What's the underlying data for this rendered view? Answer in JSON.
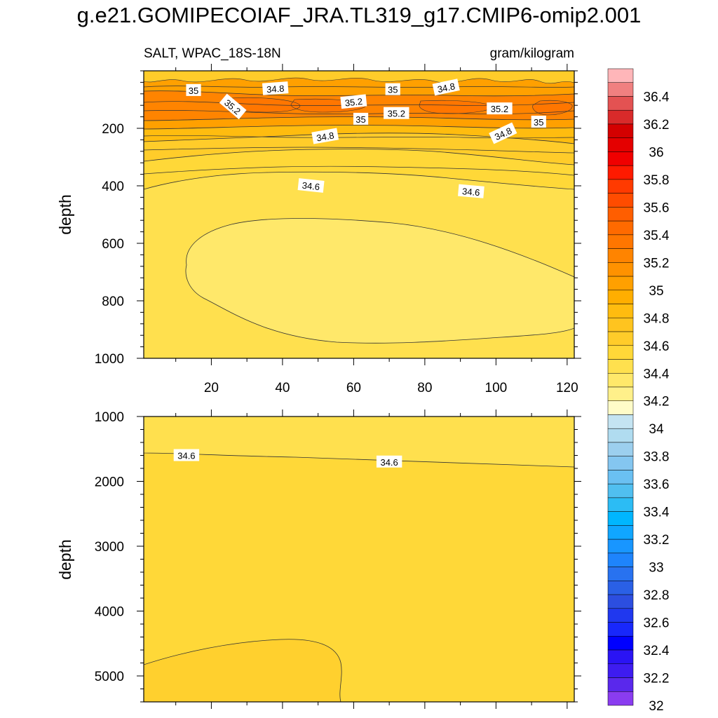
{
  "title": "g.e21.GOMIPECOIAF_JRA.TL319_g17.CMIP6-omip2.001",
  "chart_data": [
    {
      "type": "heatmap",
      "panel": "upper",
      "left_string": "SALT, WPAC_18S-18N",
      "right_string": "gram/kilogram",
      "xlabel": "",
      "ylabel": "depth",
      "xlim": [
        1,
        122
      ],
      "ylim": [
        1000,
        0
      ],
      "x_ticks": [
        20,
        40,
        60,
        80,
        100,
        120
      ],
      "y_ticks": [
        200,
        400,
        600,
        800,
        1000
      ],
      "grid": false,
      "contour_labels": [
        {
          "text": "35",
          "x": 15,
          "y": 68,
          "rotate": 0
        },
        {
          "text": "34.8",
          "x": 38,
          "y": 62,
          "rotate": -4
        },
        {
          "text": "35.2",
          "x": 26,
          "y": 125,
          "rotate": 40
        },
        {
          "text": "35.2",
          "x": 60,
          "y": 108,
          "rotate": -6
        },
        {
          "text": "35",
          "x": 71,
          "y": 65,
          "rotate": 0
        },
        {
          "text": "34.8",
          "x": 86,
          "y": 58,
          "rotate": -12
        },
        {
          "text": "35.2",
          "x": 72,
          "y": 148,
          "rotate": 0
        },
        {
          "text": "35.2",
          "x": 101,
          "y": 132,
          "rotate": 0
        },
        {
          "text": "35",
          "x": 62,
          "y": 168,
          "rotate": 0
        },
        {
          "text": "35",
          "x": 112,
          "y": 178,
          "rotate": 0
        },
        {
          "text": "34.8",
          "x": 52,
          "y": 228,
          "rotate": -10
        },
        {
          "text": "34.8",
          "x": 102,
          "y": 218,
          "rotate": -25
        },
        {
          "text": "34.6",
          "x": 48,
          "y": 400,
          "rotate": 6
        },
        {
          "text": "34.6",
          "x": 93,
          "y": 420,
          "rotate": 5
        }
      ]
    },
    {
      "type": "heatmap",
      "panel": "lower",
      "xlabel": "",
      "ylabel": "depth",
      "xlim": [
        1,
        122
      ],
      "ylim": [
        5400,
        1000
      ],
      "y_ticks": [
        1000,
        2000,
        3000,
        4000,
        5000
      ],
      "grid": false,
      "contour_labels": [
        {
          "text": "34.6",
          "x": 13,
          "y": 1600,
          "rotate": 0
        },
        {
          "text": "34.6",
          "x": 70,
          "y": 1700,
          "rotate": 0
        }
      ]
    }
  ],
  "colorbar": {
    "labels": [
      "36.4",
      "36.2",
      "36",
      "35.8",
      "35.6",
      "35.4",
      "35.2",
      "35",
      "34.8",
      "34.6",
      "34.4",
      "34.2",
      "34",
      "33.8",
      "33.6",
      "33.4",
      "33.2",
      "33",
      "32.8",
      "32.6",
      "32.4",
      "32.2",
      "32"
    ],
    "colors": [
      "#ffb6b9",
      "#f08080",
      "#e35252",
      "#d92a2a",
      "#d40000",
      "#e40000",
      "#f00000",
      "#ff1a00",
      "#ff3a00",
      "#ff4c00",
      "#ff5e00",
      "#ff6a00",
      "#ff7600",
      "#ff8400",
      "#ff9200",
      "#ffa000",
      "#ffae00",
      "#ffbc0f",
      "#ffc41f",
      "#ffcc2a",
      "#ffd838",
      "#ffe04e",
      "#ffe86a",
      "#fff08a",
      "#fffcc8",
      "#c4e4f2",
      "#b0dcf0",
      "#9ccfee",
      "#84c6f0",
      "#6ac0f2",
      "#50bff0",
      "#2cbcf4",
      "#00b6ff",
      "#10a6ff",
      "#1896ff",
      "#1e84fc",
      "#2872f0",
      "#2a60e6",
      "#2c4ee0",
      "#2038ef",
      "#1828fb",
      "#0000ff",
      "#2a14f4",
      "#3e1cf0",
      "#5a28ec",
      "#8a3cf0"
    ]
  }
}
